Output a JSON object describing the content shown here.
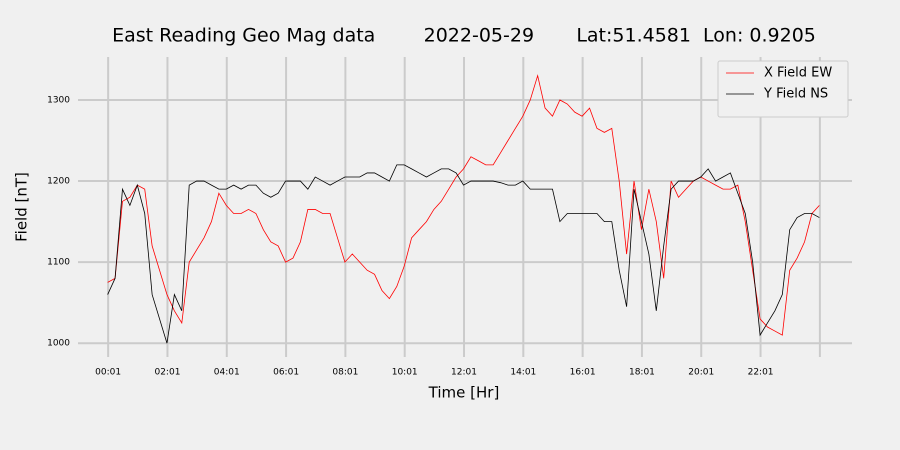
{
  "chart_data": {
    "type": "line",
    "title": "East Reading Geo Mag data        2022-05-29       Lat:51.4581  Lon: 0.9205",
    "xlabel": "Time  [Hr]",
    "ylabel": "Field  [nT]",
    "x": [
      0,
      0.25,
      0.5,
      0.75,
      1,
      1.25,
      1.5,
      1.75,
      2,
      2.25,
      2.5,
      2.75,
      3,
      3.25,
      3.5,
      3.75,
      4,
      4.25,
      4.5,
      4.75,
      5,
      5.25,
      5.5,
      5.75,
      6,
      6.25,
      6.5,
      6.75,
      7,
      7.25,
      7.5,
      7.75,
      8,
      8.25,
      8.5,
      8.75,
      9,
      9.25,
      9.5,
      9.75,
      10,
      10.25,
      10.5,
      10.75,
      11,
      11.25,
      11.5,
      11.75,
      12,
      12.25,
      12.5,
      12.75,
      13,
      13.25,
      13.5,
      13.75,
      14,
      14.25,
      14.5,
      14.75,
      15,
      15.25,
      15.5,
      15.75,
      16,
      16.25,
      16.5,
      16.75,
      17,
      17.25,
      17.5,
      17.75,
      18,
      18.25,
      18.5,
      18.75,
      19,
      19.25,
      19.5,
      19.75,
      20,
      20.25,
      20.5,
      20.75,
      21,
      21.25,
      21.5,
      21.75,
      22,
      22.25,
      22.5,
      22.75,
      23,
      23.25,
      23.5,
      23.75,
      24
    ],
    "series": [
      {
        "name": "X Field EW",
        "color": "#ff0000",
        "values": [
          1075,
          1080,
          1175,
          1180,
          1195,
          1190,
          1120,
          1090,
          1060,
          1040,
          1025,
          1100,
          1115,
          1130,
          1150,
          1185,
          1170,
          1160,
          1160,
          1165,
          1160,
          1140,
          1125,
          1120,
          1100,
          1105,
          1125,
          1165,
          1165,
          1160,
          1160,
          1130,
          1100,
          1110,
          1100,
          1090,
          1085,
          1065,
          1055,
          1070,
          1095,
          1130,
          1140,
          1150,
          1165,
          1175,
          1190,
          1205,
          1215,
          1230,
          1225,
          1220,
          1220,
          1235,
          1250,
          1265,
          1280,
          1300,
          1330,
          1290,
          1280,
          1300,
          1295,
          1285,
          1280,
          1290,
          1265,
          1260,
          1265,
          1200,
          1110,
          1200,
          1140,
          1190,
          1150,
          1080,
          1200,
          1180,
          1190,
          1200,
          1205,
          1200,
          1195,
          1190,
          1190,
          1195,
          1150,
          1090,
          1030,
          1020,
          1015,
          1010,
          1090,
          1105,
          1125,
          1160,
          1170
        ]
      },
      {
        "name": "Y Field NS",
        "color": "#000000",
        "values": [
          1060,
          1080,
          1190,
          1170,
          1195,
          1160,
          1060,
          1030,
          1000,
          1060,
          1040,
          1195,
          1200,
          1200,
          1195,
          1190,
          1190,
          1195,
          1190,
          1195,
          1195,
          1185,
          1180,
          1185,
          1200,
          1200,
          1200,
          1190,
          1205,
          1200,
          1195,
          1200,
          1205,
          1205,
          1205,
          1210,
          1210,
          1205,
          1200,
          1220,
          1220,
          1215,
          1210,
          1205,
          1210,
          1215,
          1215,
          1210,
          1195,
          1200,
          1200,
          1200,
          1200,
          1198,
          1195,
          1195,
          1200,
          1190,
          1190,
          1190,
          1190,
          1150,
          1160,
          1160,
          1160,
          1160,
          1160,
          1150,
          1150,
          1090,
          1045,
          1190,
          1150,
          1110,
          1040,
          1120,
          1190,
          1200,
          1200,
          1200,
          1205,
          1215,
          1200,
          1205,
          1210,
          1185,
          1160,
          1100,
          1010,
          1025,
          1040,
          1060,
          1140,
          1155,
          1160,
          1160,
          1155
        ]
      }
    ],
    "xlim": [
      -1,
      25.1
    ],
    "ylim": [
      983,
      1353
    ],
    "xticks": [
      {
        "value": 0.0167,
        "label": "00:01"
      },
      {
        "value": 2.0167,
        "label": "02:01"
      },
      {
        "value": 4.0167,
        "label": "04:01"
      },
      {
        "value": 6.0167,
        "label": "06:01"
      },
      {
        "value": 8.0167,
        "label": "08:01"
      },
      {
        "value": 10.0167,
        "label": "10:01"
      },
      {
        "value": 12.0167,
        "label": "12:01"
      },
      {
        "value": 14.0167,
        "label": "14:01"
      },
      {
        "value": 16.0167,
        "label": "16:01"
      },
      {
        "value": 18.0167,
        "label": "18:01"
      },
      {
        "value": 20.0167,
        "label": "20:01"
      },
      {
        "value": 22.0167,
        "label": "22:01"
      },
      {
        "value": 24.0167,
        "label": null
      }
    ],
    "yticks": [
      1000,
      1100,
      1200,
      1300
    ],
    "grid": true,
    "legend": "upper-right"
  }
}
